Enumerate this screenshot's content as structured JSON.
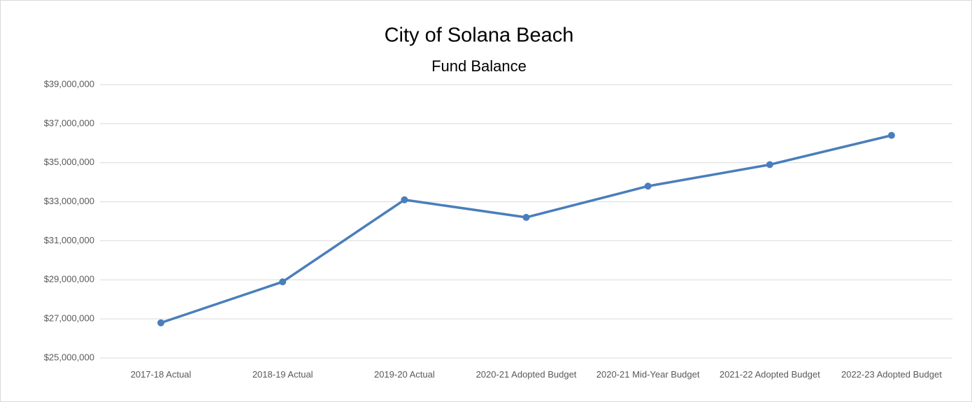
{
  "chart_data": {
    "type": "line",
    "title": "City of Solana Beach",
    "subtitle": "Fund Balance",
    "categories": [
      "2017-18 Actual",
      "2018-19 Actual",
      "2019-20 Actual",
      "2020-21 Adopted Budget",
      "2020-21 Mid-Year Budget",
      "2021-22 Adopted Budget",
      "2022-23 Adopted Budget"
    ],
    "series": [
      {
        "name": "Fund Balance",
        "color": "#4a7ebb",
        "values": [
          26800000,
          28900000,
          33100000,
          32200000,
          33800000,
          34900000,
          36400000
        ]
      }
    ],
    "ylim": [
      25000000,
      39000000
    ],
    "yticks": [
      {
        "value": 25000000,
        "label": "$25,000,000"
      },
      {
        "value": 27000000,
        "label": "$27,000,000"
      },
      {
        "value": 29000000,
        "label": "$29,000,000"
      },
      {
        "value": 31000000,
        "label": "$31,000,000"
      },
      {
        "value": 33000000,
        "label": "$33,000,000"
      },
      {
        "value": 35000000,
        "label": "$35,000,000"
      },
      {
        "value": 37000000,
        "label": "$37,000,000"
      },
      {
        "value": 39000000,
        "label": "$39,000,000"
      }
    ],
    "grid": true
  }
}
